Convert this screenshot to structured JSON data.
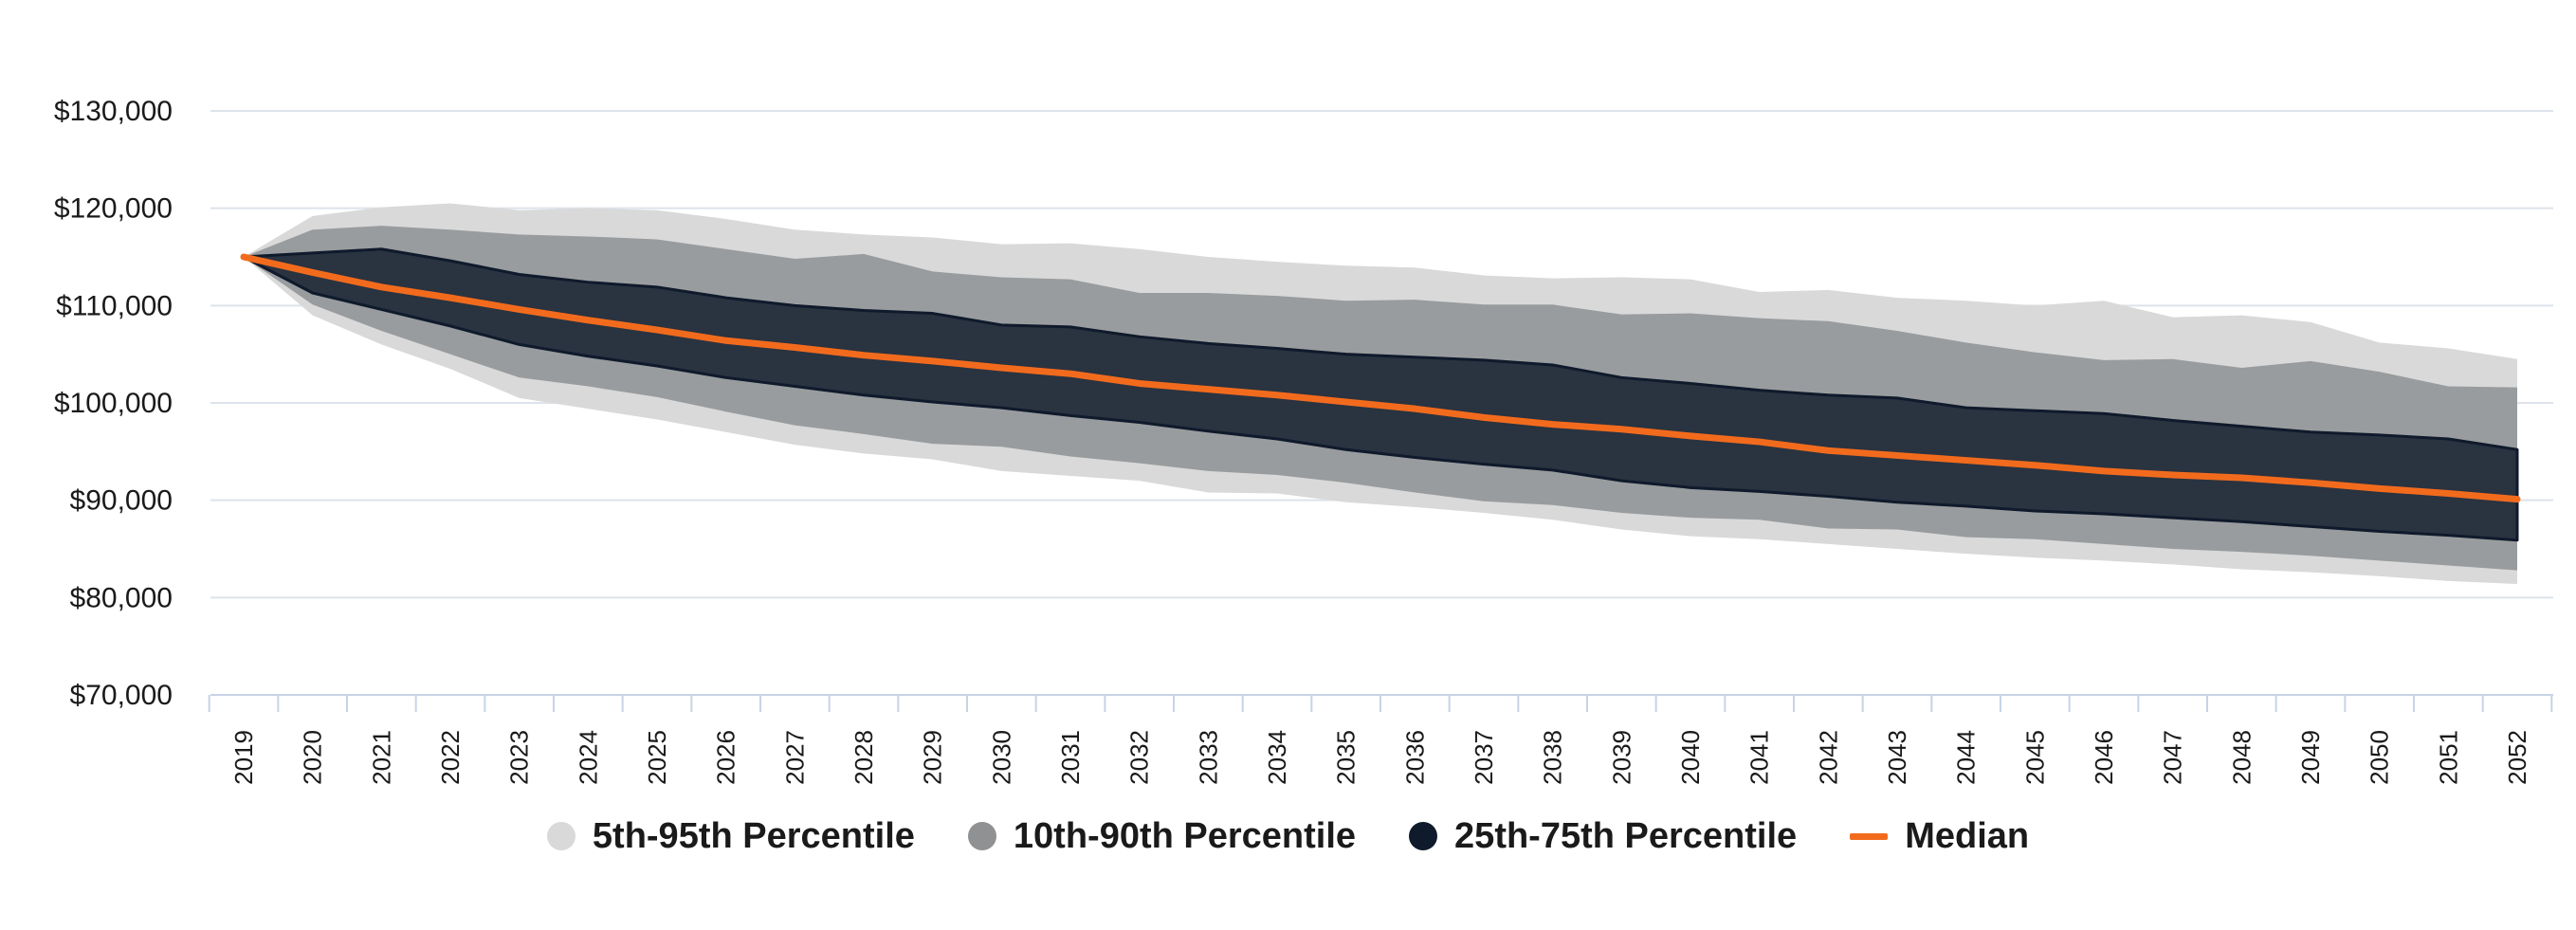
{
  "chart_data": {
    "type": "area",
    "title": "",
    "xlabel": "",
    "ylabel": "",
    "ylim": [
      70000,
      130000
    ],
    "y_ticks": [
      {
        "value": 70000,
        "label": "$70,000"
      },
      {
        "value": 80000,
        "label": "$80,000"
      },
      {
        "value": 90000,
        "label": "$90,000"
      },
      {
        "value": 100000,
        "label": "$100,000"
      },
      {
        "value": 110000,
        "label": "$110,000"
      },
      {
        "value": 120000,
        "label": "$120,000"
      },
      {
        "value": 130000,
        "label": "$130,000"
      }
    ],
    "x": [
      "2019",
      "2020",
      "2021",
      "2022",
      "2023",
      "2024",
      "2025",
      "2026",
      "2027",
      "2028",
      "2029",
      "2030",
      "2031",
      "2032",
      "2033",
      "2034",
      "2035",
      "2036",
      "2037",
      "2038",
      "2039",
      "2040",
      "2041",
      "2042",
      "2043",
      "2044",
      "2045",
      "2046",
      "2047",
      "2048",
      "2049",
      "2050",
      "2051",
      "2052"
    ],
    "grid": true,
    "legend_position": "bottom",
    "bands": [
      {
        "name": "5th-95th Percentile",
        "color": "#d9d9d9",
        "lower": [
          115000,
          109000,
          106000,
          103500,
          100500,
          99400,
          98300,
          97000,
          95700,
          94800,
          94200,
          93000,
          92500,
          92000,
          90800,
          90700,
          89800,
          89300,
          88700,
          88000,
          87000,
          86300,
          86000,
          85500,
          85000,
          84500,
          84100,
          83800,
          83400,
          82900,
          82600,
          82200,
          81700,
          81400
        ],
        "upper": [
          115000,
          119200,
          120100,
          120500,
          119800,
          120000,
          119800,
          118900,
          117800,
          117300,
          117000,
          116300,
          116400,
          115800,
          115000,
          114500,
          114100,
          113900,
          113100,
          112800,
          112900,
          112700,
          111400,
          111600,
          110800,
          110500,
          110000,
          110500,
          108800,
          109000,
          108300,
          106200,
          105600,
          104500
        ]
      },
      {
        "name": "10th-90th Percentile",
        "color": "#999c9e",
        "lower": [
          115000,
          110100,
          107400,
          105000,
          102600,
          101700,
          100600,
          99100,
          97700,
          96800,
          95800,
          95500,
          94500,
          93800,
          93000,
          92600,
          91800,
          90800,
          89900,
          89500,
          88700,
          88200,
          88000,
          87100,
          87000,
          86200,
          86000,
          85500,
          85000,
          84700,
          84300,
          83800,
          83300,
          82800
        ],
        "upper": [
          115000,
          117800,
          118200,
          117800,
          117300,
          117100,
          116800,
          115800,
          114800,
          115300,
          113500,
          112900,
          112700,
          111300,
          111300,
          111000,
          110500,
          110600,
          110100,
          110100,
          109100,
          109200,
          108700,
          108400,
          107400,
          106200,
          105200,
          104400,
          104500,
          103600,
          104300,
          103200,
          101700,
          101600
        ]
      },
      {
        "name": "25th-75th Percentile",
        "color": "#2a3340",
        "lower": [
          115000,
          111300,
          109600,
          107900,
          106000,
          104800,
          103800,
          102600,
          101700,
          100800,
          100100,
          99500,
          98700,
          98000,
          97100,
          96300,
          95200,
          94400,
          93700,
          93100,
          92000,
          91300,
          90900,
          90400,
          89800,
          89400,
          88900,
          88600,
          88200,
          87800,
          87300,
          86800,
          86400,
          85900
        ],
        "upper": [
          115000,
          115400,
          115800,
          114600,
          113200,
          112400,
          111900,
          110800,
          110000,
          109500,
          109200,
          108000,
          107800,
          106800,
          106100,
          105600,
          105000,
          104700,
          104400,
          103900,
          102600,
          102000,
          101300,
          100800,
          100500,
          99500,
          99200,
          98900,
          98200,
          97600,
          97000,
          96700,
          96300,
          95200
        ]
      }
    ],
    "series": [
      {
        "name": "Median",
        "color": "#f26b1d",
        "values": [
          115000,
          113400,
          111900,
          110800,
          109600,
          108500,
          107500,
          106400,
          105700,
          104900,
          104300,
          103600,
          103000,
          102000,
          101400,
          100800,
          100100,
          99400,
          98500,
          97800,
          97300,
          96600,
          96000,
          95100,
          94600,
          94100,
          93600,
          93000,
          92600,
          92300,
          91800,
          91200,
          90700,
          90100
        ]
      }
    ]
  }
}
